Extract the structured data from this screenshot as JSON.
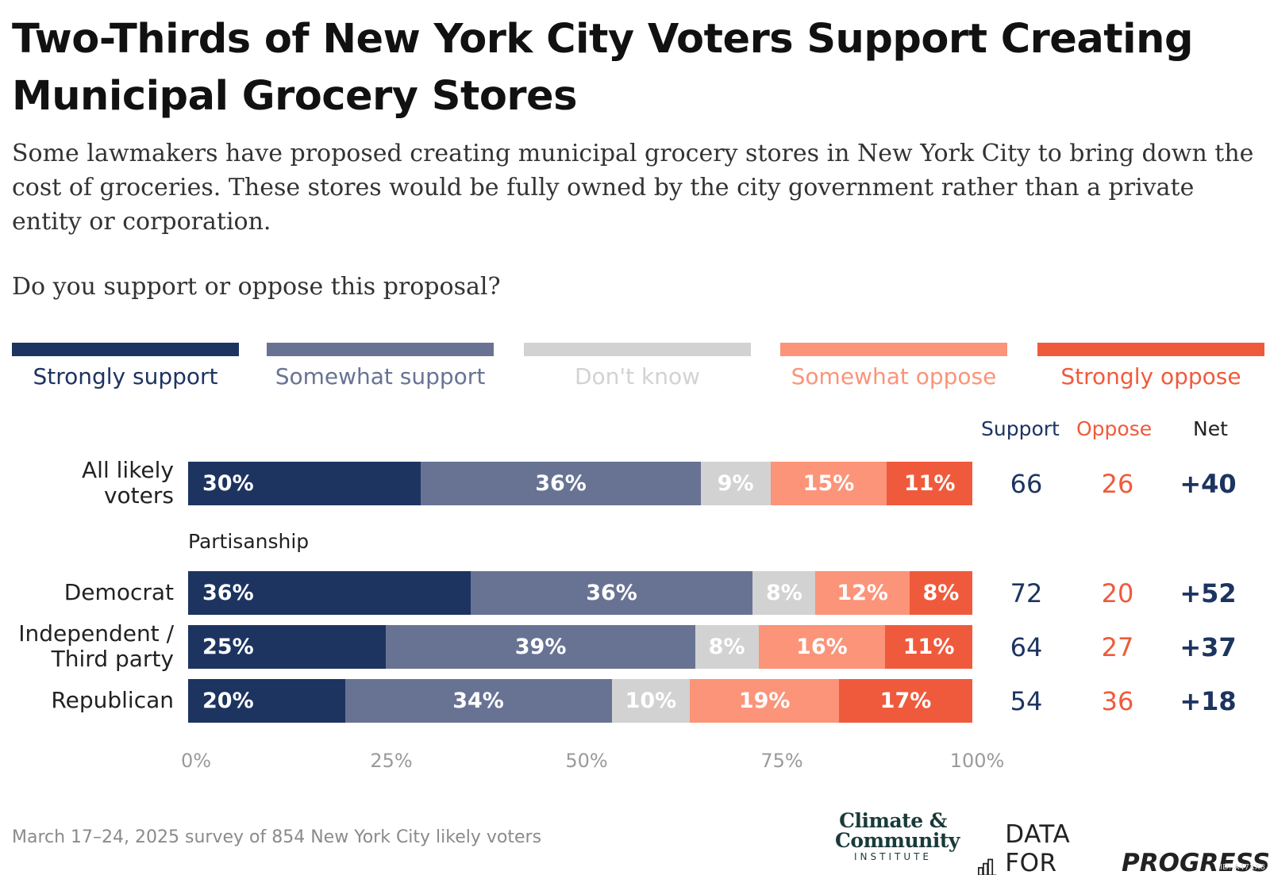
{
  "title": "Two-Thirds of New York City Voters Support Creating Municipal Grocery Stores",
  "subtitle": "Some lawmakers have proposed creating municipal grocery stores in New York City to bring down the cost of groceries. These stores would be fully owned by the city government rather than a private entity or corporation.",
  "question": "Do you support or oppose this proposal?",
  "colors": {
    "strongly_support": "#1d3461",
    "somewhat_support": "#687394",
    "dont_know": "#d2d2d2",
    "somewhat_oppose": "#fb9479",
    "strongly_oppose": "#f05a3c"
  },
  "legend": [
    "Strongly support",
    "Somewhat support",
    "Don't know",
    "Somewhat oppose",
    "Strongly oppose"
  ],
  "columns": {
    "support": "Support",
    "oppose": "Oppose",
    "net": "Net"
  },
  "section_label": "Partisanship",
  "chart_data": {
    "type": "bar",
    "orientation": "horizontal",
    "stacked": true,
    "title": "Two-Thirds of New York City Voters Support Creating Municipal Grocery Stores",
    "categories": [
      "All likely voters",
      "Democrat",
      "Independent / Third party",
      "Republican"
    ],
    "series": [
      {
        "name": "Strongly support",
        "values": [
          30,
          36,
          25,
          20
        ],
        "labels": [
          "30%",
          "36%",
          "25%",
          "20%"
        ]
      },
      {
        "name": "Somewhat support",
        "values": [
          36,
          36,
          39,
          34
        ],
        "labels": [
          "36%",
          "36%",
          "39%",
          "34%"
        ]
      },
      {
        "name": "Don't know",
        "values": [
          9,
          8,
          8,
          10
        ],
        "labels": [
          "9%",
          "8%",
          "8%",
          "10%"
        ]
      },
      {
        "name": "Somewhat oppose",
        "values": [
          15,
          12,
          16,
          19
        ],
        "labels": [
          "15%",
          "12%",
          "16%",
          "19%"
        ]
      },
      {
        "name": "Strongly oppose",
        "values": [
          11,
          8,
          11,
          17
        ],
        "labels": [
          "11%",
          "8%",
          "11%",
          "17%"
        ]
      }
    ],
    "support": [
      "66",
      "72",
      "64",
      "54"
    ],
    "oppose": [
      "26",
      "20",
      "27",
      "36"
    ],
    "net": [
      "+40",
      "+52",
      "+37",
      "+18"
    ],
    "xlim": [
      0,
      100
    ],
    "xticks": [
      "0%",
      "25%",
      "50%",
      "75%",
      "100%"
    ],
    "legend_position": "top"
  },
  "row_labels": [
    [
      "All likely",
      "voters"
    ],
    [
      "Democrat"
    ],
    [
      "Independent /",
      "Third party"
    ],
    [
      "Republican"
    ]
  ],
  "footnote": "March 17–24, 2025 survey of 854 New York City likely voters",
  "logos": {
    "cci_line1": "Climate &",
    "cci_line2": "Community",
    "cci_line3": "INSTITUTE",
    "dfp_part1": "DATA FOR",
    "dfp_part2": "PROGRESS"
  },
  "watermark": "ID: A47XX8"
}
